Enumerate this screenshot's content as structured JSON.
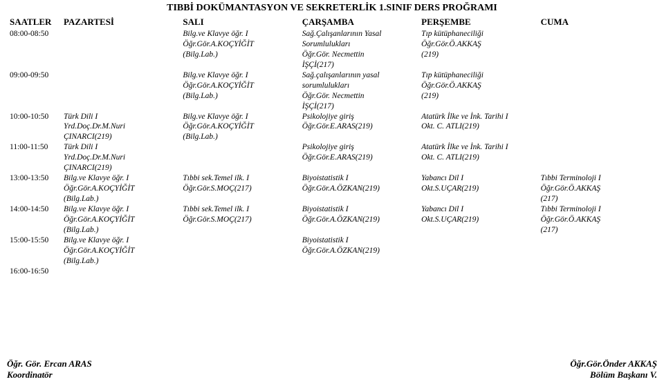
{
  "title": "TIBBİ DOKÜMANTASYON VE SEKRETERLİK 1.SINIF DERS PROĞRAMI",
  "header": {
    "hours": "SAATLER",
    "mon": "PAZARTESİ",
    "tue": "SALI",
    "wed": "ÇARŞAMBA",
    "thu": "PERŞEMBE",
    "fri": "CUMA"
  },
  "rows": [
    {
      "time": "08:00-08:50",
      "mon": "",
      "tue": "Bilg.ve Klavye öğr. I\nÖğr.Gör.A.KOÇYİĞİT\n(Bilg.Lab.)",
      "wed": "Sağ.Çalışanlarının Yasal\nSorumlulukları\nÖğr.Gör. Necmettin\nİŞÇİ(217)",
      "thu": "Tıp kütüphaneciliği\nÖğr.Gör.Ö.AKKAŞ\n(219)",
      "fri": ""
    },
    {
      "time": "09:00-09:50",
      "mon": "",
      "tue": "Bilg.ve Klavye öğr. I\nÖğr.Gör.A.KOÇYİĞİT\n(Bilg.Lab.)",
      "wed": "Sağ.çalışanlarının yasal\nsorumlulukları\nÖğr.Gör. Necmettin\nİŞÇİ(217)",
      "thu": "Tıp kütüphaneciliği\nÖğr.Gör.Ö.AKKAŞ\n(219)",
      "fri": ""
    },
    {
      "time": "10:00-10:50",
      "mon": "Türk Dili I\nYrd.Doç.Dr.M.Nuri\nÇINARCI(219)",
      "tue": "Bilg.ve Klavye öğr. I\nÖğr.Gör.A.KOÇYİĞİT\n(Bilg.Lab.)",
      "wed": "Psikolojiye giriş\nÖğr.Gör.E.ARAS(219)",
      "thu": "Atatürk İlke ve İnk. Tarihi I\nOkt. C. ATLI(219)",
      "fri": ""
    },
    {
      "time": "11:00-11:50",
      "mon": "Türk Dili I\nYrd.Doç.Dr.M.Nuri\nÇINARCI(219)",
      "tue": "",
      "wed": "Psikolojiye giriş\nÖğr.Gör.E.ARAS(219)",
      "thu": "Atatürk İlke ve İnk. Tarihi I\nOkt. C. ATLI(219)",
      "fri": ""
    },
    {
      "time": "13:00-13:50",
      "mon": "Bilg.ve Klavye öğr. I\nÖğr.Gör.A.KOÇYİĞİT\n(Bilg.Lab.)",
      "tue": "Tıbbi sek.Temel ilk. I\nÖğr.Gör.S.MOÇ(217)",
      "wed": "Biyoistatistik I\nÖğr.Gör.A.ÖZKAN(219)",
      "thu": "Yabancı Dil I\nOkt.S.UÇAR(219)",
      "fri": "Tıbbi Terminoloji I\nÖğr.Gör.Ö.AKKAŞ\n(217)"
    },
    {
      "time": "14:00-14:50",
      "mon": "Bilg.ve Klavye öğr. I\nÖğr.Gör.A.KOÇYİĞİT\n(Bilg.Lab.)",
      "tue": "Tıbbi sek.Temel ilk. I\nÖğr.Gör.S.MOÇ(217)",
      "wed": "Biyoistatistik I\nÖğr.Gör.A.ÖZKAN(219)",
      "thu": "Yabancı Dil I\nOkt.S.UÇAR(219)",
      "fri": "Tıbbi Terminoloji I\nÖğr.Gör.Ö.AKKAŞ\n(217)"
    },
    {
      "time": "15:00-15:50",
      "mon": "Bilg.ve Klavye öğr. I\nÖğr.Gör.A.KOÇYİĞİT\n(Bilg.Lab.)",
      "tue": "",
      "wed": "Biyoistatistik I\nÖğr.Gör.A.ÖZKAN(219)",
      "thu": "",
      "fri": ""
    },
    {
      "time": "16:00-16:50",
      "mon": "",
      "tue": "",
      "wed": "",
      "thu": "",
      "fri": ""
    }
  ],
  "footer": {
    "left1": "Öğr. Gör. Ercan ARAS",
    "left2": "Koordinatör",
    "right1": "Öğr.Gör.Önder AKKAŞ",
    "right2": "Bölüm Başkanı V."
  }
}
